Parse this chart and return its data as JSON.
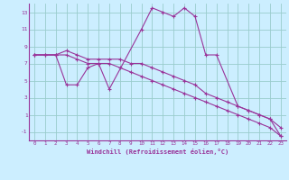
{
  "xlabel": "Windchill (Refroidissement éolien,°C)",
  "xlim": [
    -0.5,
    23.5
  ],
  "ylim": [
    -2,
    14
  ],
  "xticks": [
    0,
    1,
    2,
    3,
    4,
    5,
    6,
    7,
    8,
    9,
    10,
    11,
    12,
    13,
    14,
    15,
    16,
    17,
    18,
    19,
    20,
    21,
    22,
    23
  ],
  "yticks": [
    -1,
    1,
    3,
    5,
    7,
    9,
    11,
    13
  ],
  "background_color": "#cceeff",
  "line_color": "#993399",
  "grid_color": "#99cccc",
  "series1": {
    "x": [
      0,
      1,
      2,
      3,
      4,
      5,
      6,
      7,
      8,
      9,
      10,
      11,
      12,
      13,
      14,
      15,
      16,
      17,
      18,
      19,
      20,
      21,
      22,
      23
    ],
    "y": [
      8,
      8,
      8,
      8.5,
      8,
      7.5,
      7.5,
      7.5,
      7.5,
      7,
      7,
      6.5,
      6,
      5.5,
      5,
      4.5,
      3.5,
      3,
      2.5,
      2,
      1.5,
      1,
      0.5,
      -0.5
    ]
  },
  "series2": {
    "x": [
      0,
      1,
      2,
      3,
      4,
      5,
      6,
      7,
      8,
      9,
      10,
      11,
      12,
      13,
      14,
      15,
      16,
      17,
      18,
      19,
      20,
      21,
      22,
      23
    ],
    "y": [
      8,
      8,
      8,
      8,
      7.5,
      7,
      7,
      7,
      6.5,
      6,
      5.5,
      5,
      4.5,
      4,
      3.5,
      3,
      2.5,
      2,
      1.5,
      1,
      0.5,
      0,
      -0.5,
      -1.5
    ]
  },
  "series3": {
    "x": [
      0,
      2,
      3,
      4,
      5,
      6,
      7,
      10,
      11,
      12,
      13,
      14,
      15,
      16,
      17,
      19,
      20,
      21,
      22,
      23
    ],
    "y": [
      8,
      8,
      4.5,
      4.5,
      6.5,
      7,
      4,
      11,
      13.5,
      13,
      12.5,
      13.5,
      12.5,
      8,
      8,
      2,
      1.5,
      1,
      0.5,
      -1.5
    ]
  }
}
